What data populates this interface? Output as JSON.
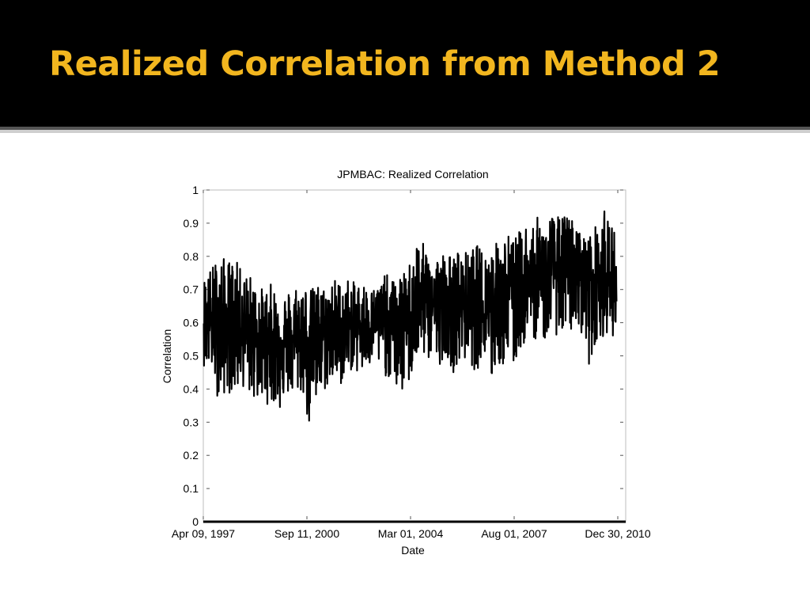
{
  "slide": {
    "title": "Realized Correlation from Method 2"
  },
  "colors": {
    "title_bar": "#000000",
    "title_text": "#f2b61f",
    "series_line": "#000000"
  },
  "chart_data": {
    "type": "line",
    "title": "JPMBAC: Realized Correlation",
    "xlabel": "Date",
    "ylabel": "Correlation",
    "xlim": [
      "1997-04-09",
      "2010-12-30"
    ],
    "ylim": [
      0,
      1
    ],
    "xticks": [
      "Apr 09, 1997",
      "Sep 11, 2000",
      "Mar 01, 2004",
      "Aug 01, 2007",
      "Dec 30, 2010"
    ],
    "yticks": [
      "0",
      "0.1",
      "0.2",
      "0.3",
      "0.4",
      "0.5",
      "0.6",
      "0.7",
      "0.8",
      "0.9",
      "1"
    ],
    "grid": false,
    "legend": "none",
    "series": [
      {
        "x": [
          "1997-04",
          "1997-07",
          "1997-10",
          "1998-01",
          "1998-04",
          "1998-07",
          "1998-10",
          "1999-01",
          "1999-04",
          "1999-07",
          "1999-10",
          "2000-01",
          "2000-04",
          "2000-07",
          "2000-10",
          "2001-01",
          "2001-04",
          "2001-07",
          "2001-10",
          "2002-01",
          "2002-04",
          "2002-07",
          "2002-10",
          "2003-01",
          "2003-04",
          "2003-07",
          "2003-10",
          "2004-01",
          "2004-04",
          "2004-07",
          "2004-10",
          "2005-01",
          "2005-04",
          "2005-07",
          "2005-10",
          "2006-01",
          "2006-04",
          "2006-07",
          "2006-10",
          "2007-01",
          "2007-04",
          "2007-07",
          "2007-10",
          "2008-01",
          "2008-04",
          "2008-07",
          "2008-10",
          "2009-01",
          "2009-04",
          "2009-07",
          "2009-10",
          "2010-01",
          "2010-04",
          "2010-07",
          "2010-10",
          "2010-12"
        ],
        "center": [
          0.62,
          0.61,
          0.6,
          0.59,
          0.6,
          0.59,
          0.58,
          0.57,
          0.56,
          0.55,
          0.55,
          0.54,
          0.55,
          0.55,
          0.56,
          0.56,
          0.57,
          0.58,
          0.57,
          0.58,
          0.59,
          0.6,
          0.6,
          0.6,
          0.59,
          0.6,
          0.61,
          0.62,
          0.64,
          0.66,
          0.67,
          0.66,
          0.65,
          0.64,
          0.65,
          0.65,
          0.66,
          0.65,
          0.66,
          0.67,
          0.68,
          0.69,
          0.7,
          0.72,
          0.73,
          0.74,
          0.76,
          0.77,
          0.78,
          0.77,
          0.76,
          0.74,
          0.73,
          0.72,
          0.72,
          0.71
        ],
        "high": [
          0.74,
          0.77,
          0.81,
          0.79,
          0.8,
          0.76,
          0.75,
          0.72,
          0.7,
          0.72,
          0.7,
          0.7,
          0.72,
          0.74,
          0.7,
          0.72,
          0.71,
          0.74,
          0.73,
          0.74,
          0.72,
          0.73,
          0.7,
          0.72,
          0.75,
          0.73,
          0.74,
          0.76,
          0.87,
          0.84,
          0.82,
          0.81,
          0.82,
          0.8,
          0.83,
          0.81,
          0.84,
          0.82,
          0.83,
          0.85,
          0.88,
          0.86,
          0.88,
          0.93,
          0.92,
          0.91,
          0.93,
          0.92,
          0.93,
          0.91,
          0.87,
          0.86,
          0.9,
          0.94,
          0.92,
          0.86
        ],
        "low": [
          0.47,
          0.45,
          0.36,
          0.39,
          0.38,
          0.41,
          0.38,
          0.36,
          0.35,
          0.36,
          0.33,
          0.38,
          0.37,
          0.39,
          0.27,
          0.34,
          0.39,
          0.42,
          0.4,
          0.46,
          0.45,
          0.44,
          0.46,
          0.47,
          0.44,
          0.42,
          0.37,
          0.4,
          0.47,
          0.5,
          0.48,
          0.46,
          0.51,
          0.45,
          0.46,
          0.5,
          0.44,
          0.51,
          0.4,
          0.47,
          0.46,
          0.45,
          0.52,
          0.55,
          0.55,
          0.54,
          0.57,
          0.56,
          0.53,
          0.59,
          0.57,
          0.46,
          0.55,
          0.56,
          0.56,
          0.56
        ]
      }
    ]
  }
}
